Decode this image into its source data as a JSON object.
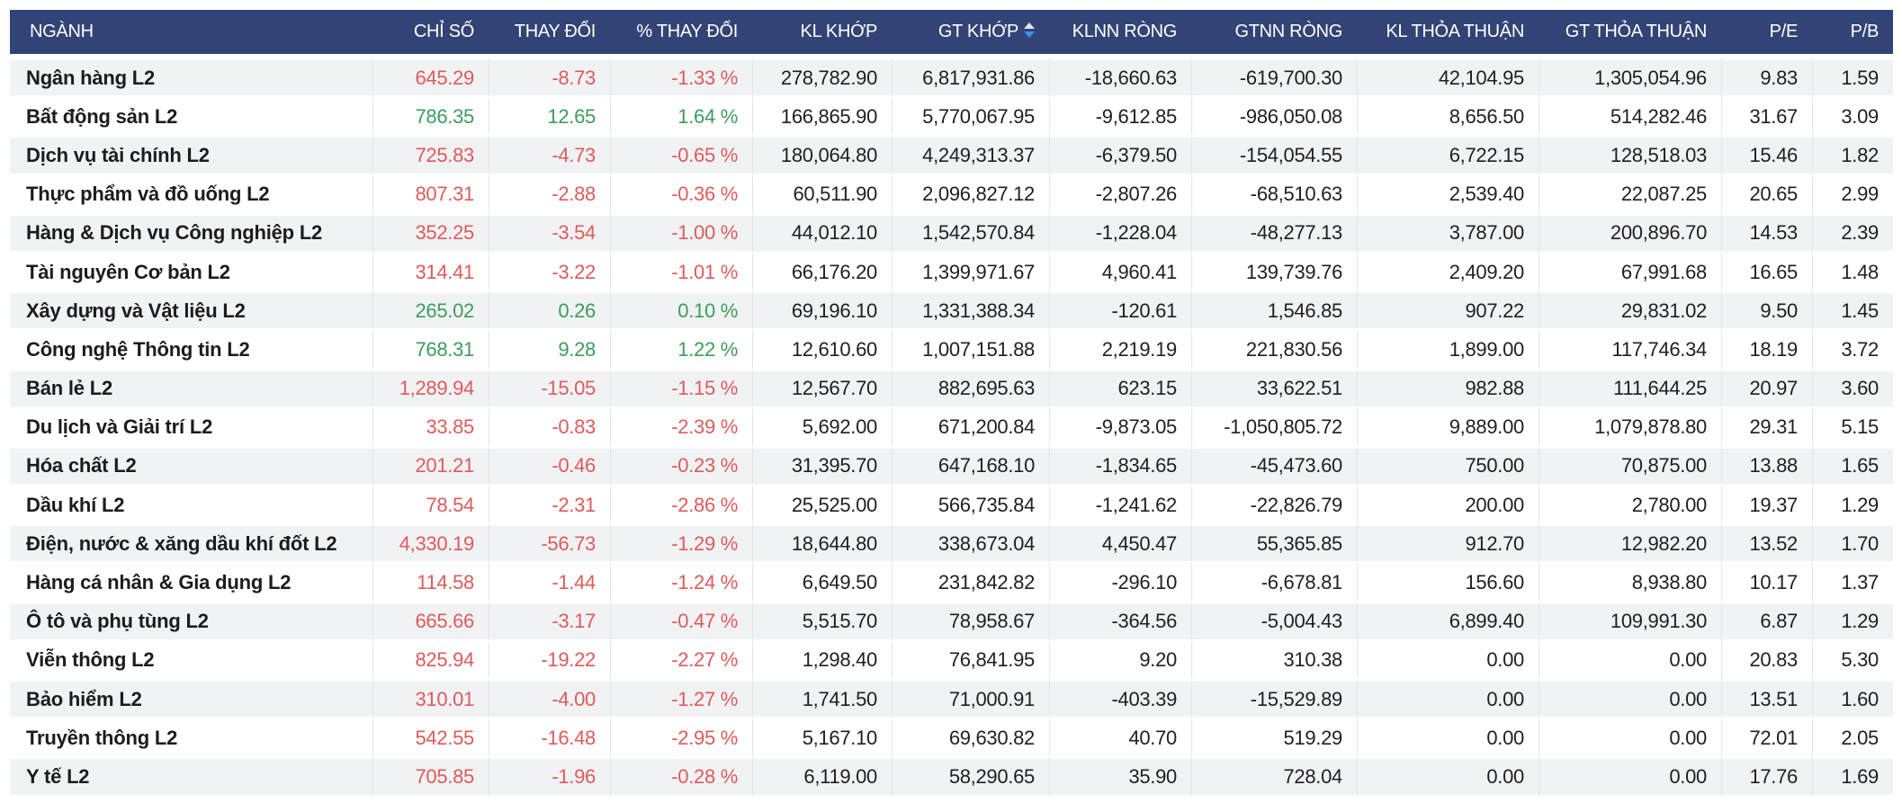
{
  "colors": {
    "header_bg": "#324476",
    "row_alt_bg": "#f1f2f4",
    "up": "#3d9c5c",
    "down": "#e05a5a",
    "sort_active": "#3f8fe8"
  },
  "table": {
    "columns": [
      {
        "key": "name",
        "label": "NGÀNH"
      },
      {
        "key": "index",
        "label": "CHỈ SỐ"
      },
      {
        "key": "change",
        "label": "THAY ĐỔI"
      },
      {
        "key": "pct_change",
        "label": "% THAY ĐỔI"
      },
      {
        "key": "kl_khop",
        "label": "KL KHỚP"
      },
      {
        "key": "gt_khop",
        "label": "GT KHỚP",
        "sort_icon": "sort-desc-icon"
      },
      {
        "key": "klnn_rong",
        "label": "KLNN RÒNG"
      },
      {
        "key": "gtnn_rong",
        "label": "GTNN RÒNG"
      },
      {
        "key": "kl_thoa_thuan",
        "label": "KL THỎA THUẬN"
      },
      {
        "key": "gt_thoa_thuan",
        "label": "GT THỎA THUẬN"
      },
      {
        "key": "pe",
        "label": "P/E"
      },
      {
        "key": "pb",
        "label": "P/B"
      }
    ],
    "rows": [
      {
        "name": "Ngân hàng L2",
        "index": "645.29",
        "change": "-8.73",
        "pct_change": "-1.33 %",
        "kl_khop": "278,782.90",
        "gt_khop": "6,817,931.86",
        "klnn_rong": "-18,660.63",
        "gtnn_rong": "-619,700.30",
        "kl_thoa_thuan": "42,104.95",
        "gt_thoa_thuan": "1,305,054.96",
        "pe": "9.83",
        "pb": "1.59",
        "trend": "down"
      },
      {
        "name": "Bất động sản L2",
        "index": "786.35",
        "change": "12.65",
        "pct_change": "1.64 %",
        "kl_khop": "166,865.90",
        "gt_khop": "5,770,067.95",
        "klnn_rong": "-9,612.85",
        "gtnn_rong": "-986,050.08",
        "kl_thoa_thuan": "8,656.50",
        "gt_thoa_thuan": "514,282.46",
        "pe": "31.67",
        "pb": "3.09",
        "trend": "up"
      },
      {
        "name": "Dịch vụ tài chính L2",
        "index": "725.83",
        "change": "-4.73",
        "pct_change": "-0.65 %",
        "kl_khop": "180,064.80",
        "gt_khop": "4,249,313.37",
        "klnn_rong": "-6,379.50",
        "gtnn_rong": "-154,054.55",
        "kl_thoa_thuan": "6,722.15",
        "gt_thoa_thuan": "128,518.03",
        "pe": "15.46",
        "pb": "1.82",
        "trend": "down"
      },
      {
        "name": "Thực phẩm và đồ uống L2",
        "index": "807.31",
        "change": "-2.88",
        "pct_change": "-0.36 %",
        "kl_khop": "60,511.90",
        "gt_khop": "2,096,827.12",
        "klnn_rong": "-2,807.26",
        "gtnn_rong": "-68,510.63",
        "kl_thoa_thuan": "2,539.40",
        "gt_thoa_thuan": "22,087.25",
        "pe": "20.65",
        "pb": "2.99",
        "trend": "down"
      },
      {
        "name": "Hàng & Dịch vụ Công nghiệp L2",
        "index": "352.25",
        "change": "-3.54",
        "pct_change": "-1.00 %",
        "kl_khop": "44,012.10",
        "gt_khop": "1,542,570.84",
        "klnn_rong": "-1,228.04",
        "gtnn_rong": "-48,277.13",
        "kl_thoa_thuan": "3,787.00",
        "gt_thoa_thuan": "200,896.70",
        "pe": "14.53",
        "pb": "2.39",
        "trend": "down"
      },
      {
        "name": "Tài nguyên Cơ bản L2",
        "index": "314.41",
        "change": "-3.22",
        "pct_change": "-1.01 %",
        "kl_khop": "66,176.20",
        "gt_khop": "1,399,971.67",
        "klnn_rong": "4,960.41",
        "gtnn_rong": "139,739.76",
        "kl_thoa_thuan": "2,409.20",
        "gt_thoa_thuan": "67,991.68",
        "pe": "16.65",
        "pb": "1.48",
        "trend": "down"
      },
      {
        "name": "Xây dựng và Vật liệu L2",
        "index": "265.02",
        "change": "0.26",
        "pct_change": "0.10 %",
        "kl_khop": "69,196.10",
        "gt_khop": "1,331,388.34",
        "klnn_rong": "-120.61",
        "gtnn_rong": "1,546.85",
        "kl_thoa_thuan": "907.22",
        "gt_thoa_thuan": "29,831.02",
        "pe": "9.50",
        "pb": "1.45",
        "trend": "up"
      },
      {
        "name": "Công nghệ Thông tin L2",
        "index": "768.31",
        "change": "9.28",
        "pct_change": "1.22 %",
        "kl_khop": "12,610.60",
        "gt_khop": "1,007,151.88",
        "klnn_rong": "2,219.19",
        "gtnn_rong": "221,830.56",
        "kl_thoa_thuan": "1,899.00",
        "gt_thoa_thuan": "117,746.34",
        "pe": "18.19",
        "pb": "3.72",
        "trend": "up"
      },
      {
        "name": "Bán lẻ L2",
        "index": "1,289.94",
        "change": "-15.05",
        "pct_change": "-1.15 %",
        "kl_khop": "12,567.70",
        "gt_khop": "882,695.63",
        "klnn_rong": "623.15",
        "gtnn_rong": "33,622.51",
        "kl_thoa_thuan": "982.88",
        "gt_thoa_thuan": "111,644.25",
        "pe": "20.97",
        "pb": "3.60",
        "trend": "down"
      },
      {
        "name": "Du lịch và Giải trí L2",
        "index": "33.85",
        "change": "-0.83",
        "pct_change": "-2.39 %",
        "kl_khop": "5,692.00",
        "gt_khop": "671,200.84",
        "klnn_rong": "-9,873.05",
        "gtnn_rong": "-1,050,805.72",
        "kl_thoa_thuan": "9,889.00",
        "gt_thoa_thuan": "1,079,878.80",
        "pe": "29.31",
        "pb": "5.15",
        "trend": "down"
      },
      {
        "name": "Hóa chất L2",
        "index": "201.21",
        "change": "-0.46",
        "pct_change": "-0.23 %",
        "kl_khop": "31,395.70",
        "gt_khop": "647,168.10",
        "klnn_rong": "-1,834.65",
        "gtnn_rong": "-45,473.60",
        "kl_thoa_thuan": "750.00",
        "gt_thoa_thuan": "70,875.00",
        "pe": "13.88",
        "pb": "1.65",
        "trend": "down"
      },
      {
        "name": "Dầu khí L2",
        "index": "78.54",
        "change": "-2.31",
        "pct_change": "-2.86 %",
        "kl_khop": "25,525.00",
        "gt_khop": "566,735.84",
        "klnn_rong": "-1,241.62",
        "gtnn_rong": "-22,826.79",
        "kl_thoa_thuan": "200.00",
        "gt_thoa_thuan": "2,780.00",
        "pe": "19.37",
        "pb": "1.29",
        "trend": "down"
      },
      {
        "name": "Điện, nước & xăng dầu khí đốt L2",
        "index": "4,330.19",
        "change": "-56.73",
        "pct_change": "-1.29 %",
        "kl_khop": "18,644.80",
        "gt_khop": "338,673.04",
        "klnn_rong": "4,450.47",
        "gtnn_rong": "55,365.85",
        "kl_thoa_thuan": "912.70",
        "gt_thoa_thuan": "12,982.20",
        "pe": "13.52",
        "pb": "1.70",
        "trend": "down"
      },
      {
        "name": "Hàng cá nhân & Gia dụng L2",
        "index": "114.58",
        "change": "-1.44",
        "pct_change": "-1.24 %",
        "kl_khop": "6,649.50",
        "gt_khop": "231,842.82",
        "klnn_rong": "-296.10",
        "gtnn_rong": "-6,678.81",
        "kl_thoa_thuan": "156.60",
        "gt_thoa_thuan": "8,938.80",
        "pe": "10.17",
        "pb": "1.37",
        "trend": "down"
      },
      {
        "name": "Ô tô và phụ tùng L2",
        "index": "665.66",
        "change": "-3.17",
        "pct_change": "-0.47 %",
        "kl_khop": "5,515.70",
        "gt_khop": "78,958.67",
        "klnn_rong": "-364.56",
        "gtnn_rong": "-5,004.43",
        "kl_thoa_thuan": "6,899.40",
        "gt_thoa_thuan": "109,991.30",
        "pe": "6.87",
        "pb": "1.29",
        "trend": "down"
      },
      {
        "name": "Viễn thông L2",
        "index": "825.94",
        "change": "-19.22",
        "pct_change": "-2.27 %",
        "kl_khop": "1,298.40",
        "gt_khop": "76,841.95",
        "klnn_rong": "9.20",
        "gtnn_rong": "310.38",
        "kl_thoa_thuan": "0.00",
        "gt_thoa_thuan": "0.00",
        "pe": "20.83",
        "pb": "5.30",
        "trend": "down"
      },
      {
        "name": "Bảo hiểm L2",
        "index": "310.01",
        "change": "-4.00",
        "pct_change": "-1.27 %",
        "kl_khop": "1,741.50",
        "gt_khop": "71,000.91",
        "klnn_rong": "-403.39",
        "gtnn_rong": "-15,529.89",
        "kl_thoa_thuan": "0.00",
        "gt_thoa_thuan": "0.00",
        "pe": "13.51",
        "pb": "1.60",
        "trend": "down"
      },
      {
        "name": "Truyền thông L2",
        "index": "542.55",
        "change": "-16.48",
        "pct_change": "-2.95 %",
        "kl_khop": "5,167.10",
        "gt_khop": "69,630.82",
        "klnn_rong": "40.70",
        "gtnn_rong": "519.29",
        "kl_thoa_thuan": "0.00",
        "gt_thoa_thuan": "0.00",
        "pe": "72.01",
        "pb": "2.05",
        "trend": "down"
      },
      {
        "name": "Y tế L2",
        "index": "705.85",
        "change": "-1.96",
        "pct_change": "-0.28 %",
        "kl_khop": "6,119.00",
        "gt_khop": "58,290.65",
        "klnn_rong": "35.90",
        "gtnn_rong": "728.04",
        "kl_thoa_thuan": "0.00",
        "gt_thoa_thuan": "0.00",
        "pe": "17.76",
        "pb": "1.69",
        "trend": "down"
      }
    ]
  }
}
